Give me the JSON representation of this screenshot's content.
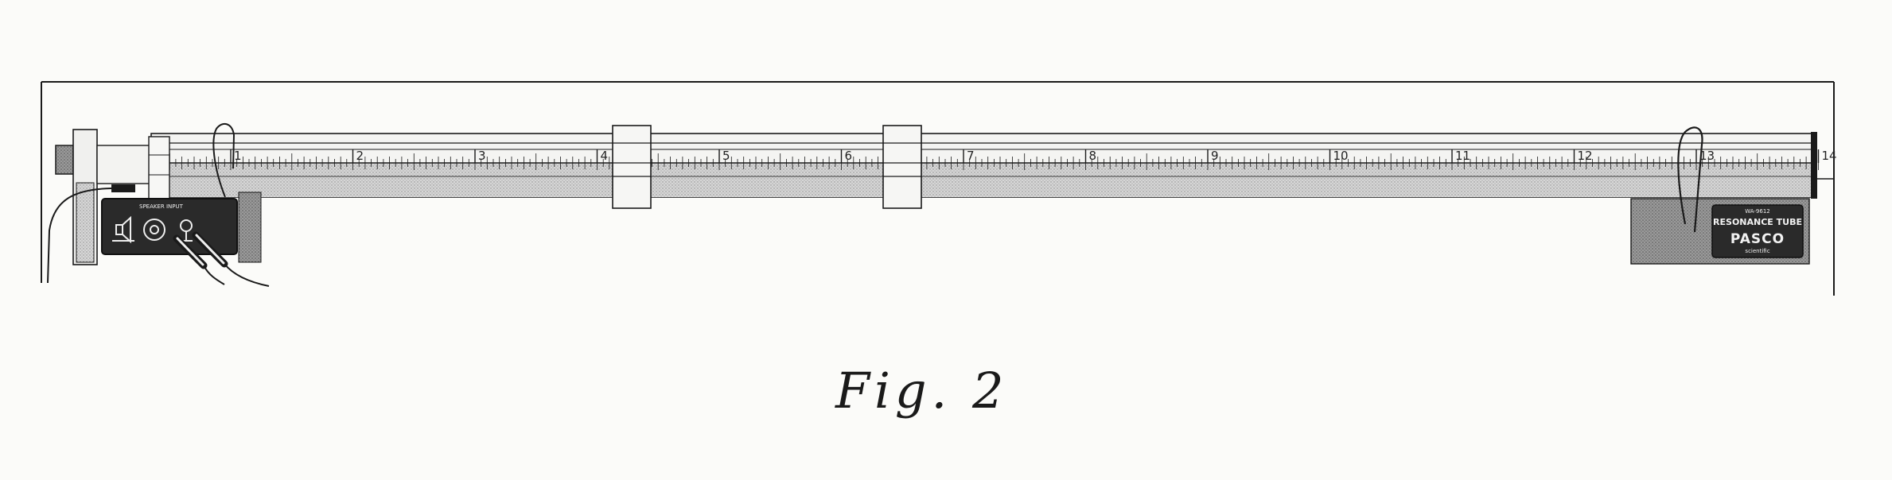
{
  "figure": {
    "caption": "Fig. 2",
    "scale_labels": [
      "1",
      "2",
      "3",
      "4",
      "5",
      "6",
      "7",
      "8",
      "9",
      "10",
      "11",
      "12",
      "13",
      "14"
    ],
    "speaker_panel_text": "SPEAKER INPUT",
    "end_label": {
      "title": "RESONANCE TUBE",
      "brand": "PASCO",
      "small_top": "WA-9612",
      "small_bottom": "scientific"
    },
    "colors": {
      "ink": "#1a1a1a",
      "tube_fill": "#cfcfcf",
      "panel_dark": "#2a2a2a",
      "stand": "#8e8e8e",
      "paper": "#fbfbf9"
    },
    "icons": [
      "speaker-icon",
      "input-jack-icon",
      "mic-icon"
    ]
  }
}
